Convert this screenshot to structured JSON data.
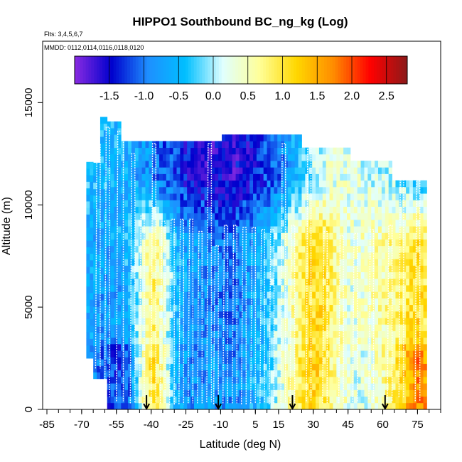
{
  "chart_data": {
    "type": "heatmap",
    "title": "HIPPO1 Southbound BC_ng_kg (Log)",
    "annotations": [
      "Flts: 3,4,5,6,7",
      "MMDD: 0112,0114,0116,0118,0120"
    ],
    "xlabel": "Latitude (deg N)",
    "ylabel": "Altitude (m)",
    "xlim": [
      -85,
      85
    ],
    "ylim": [
      0,
      18000
    ],
    "x_ticks": [
      -85,
      -70,
      -55,
      -40,
      -25,
      -10,
      5,
      15,
      30,
      45,
      60,
      75
    ],
    "x_tick_labels": [
      "-85",
      "-70",
      "-55",
      "-40",
      "-25",
      "-10",
      "5",
      "15",
      "30",
      "45",
      "60",
      "75"
    ],
    "y_ticks": [
      0,
      5000,
      10000,
      15000
    ],
    "y_tick_labels": [
      "0",
      "5000",
      "10000",
      "15000"
    ],
    "colorbar": {
      "ticks": [
        -1.5,
        -1.0,
        -0.5,
        0.0,
        0.5,
        1.0,
        1.5,
        2.0,
        2.5
      ],
      "tick_labels": [
        "-1.5",
        "-1.0",
        "-0.5",
        "0.0",
        "0.5",
        "1.0",
        "1.5",
        "2.0",
        "2.5"
      ],
      "range": [
        -2.0,
        2.8
      ],
      "colors": [
        "#8a2be2",
        "#0000cd",
        "#1e90ff",
        "#00bfff",
        "#e0ffff",
        "#ffff99",
        "#ffd700",
        "#ff8c00",
        "#ff0000",
        "#8b1a1a"
      ]
    },
    "arrows_x": [
      -42,
      -11,
      21,
      61
    ],
    "value_bands_by_latitude": {
      "latitude": [
        -68,
        -60,
        -55,
        -50,
        -45,
        -40,
        -35,
        -30,
        -25,
        -20,
        -15,
        -10,
        -5,
        0,
        5,
        10,
        15,
        20,
        25,
        30,
        35,
        40,
        45,
        50,
        55,
        60,
        65,
        70,
        75,
        78
      ],
      "boundary_layer_0_3000m": [
        -0.8,
        -1.2,
        -1.3,
        -1.0,
        0.3,
        1.1,
        0.4,
        -0.6,
        -0.8,
        -0.9,
        -0.7,
        -0.8,
        -0.9,
        -0.7,
        -0.5,
        -0.3,
        0.2,
        0.6,
        1.0,
        1.2,
        0.9,
        0.5,
        0.3,
        0.2,
        0.4,
        0.6,
        0.9,
        1.4,
        1.8,
        1.5
      ],
      "mid_3000_8000m": [
        -0.6,
        -0.7,
        -0.6,
        -0.4,
        0.2,
        0.8,
        0.3,
        -0.4,
        -0.7,
        -0.8,
        -0.9,
        -1.0,
        -1.0,
        -0.8,
        -0.6,
        -0.3,
        0.1,
        0.5,
        0.9,
        1.1,
        1.0,
        0.6,
        0.3,
        0.4,
        0.5,
        0.6,
        0.7,
        0.9,
        1.0,
        0.8
      ],
      "upper_8000_14000m": [
        -0.4,
        -0.5,
        -0.5,
        -0.6,
        -0.7,
        -0.9,
        -1.1,
        -1.3,
        -1.4,
        -1.5,
        -1.6,
        -1.6,
        -1.6,
        -1.5,
        -1.4,
        -1.2,
        -1.0,
        -0.6,
        -0.3,
        0.0,
        0.2,
        0.3,
        0.3,
        0.2,
        0.1,
        0.0,
        -0.1,
        -0.2,
        -0.3,
        -0.3
      ]
    }
  }
}
